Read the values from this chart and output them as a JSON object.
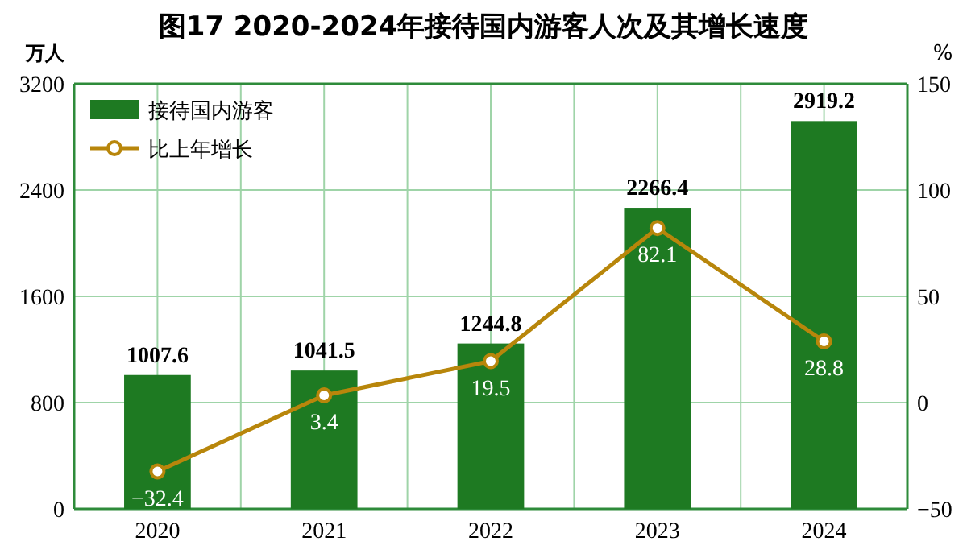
{
  "chart_data": {
    "type": "bar",
    "title": "图17 2020-2024年接待国内游客人次及其增长速度",
    "ylabel": "万人",
    "y2label": "%",
    "categories": [
      "2020",
      "2021",
      "2022",
      "2023",
      "2024"
    ],
    "series": [
      {
        "name": "接待国内游客",
        "color": "#1e7a22",
        "values": [
          1007.6,
          1041.5,
          1244.8,
          2266.4,
          2919.2
        ]
      },
      {
        "name": "比上年增长",
        "type": "line",
        "axis": "y2",
        "color": "#b8860b",
        "marker": "circle",
        "values": [
          -32.4,
          3.4,
          19.5,
          82.1,
          28.8
        ]
      }
    ],
    "ylim": [
      0,
      3200
    ],
    "yticks": [
      0,
      800,
      1600,
      2400,
      3200
    ],
    "y2lim": [
      -50,
      150
    ],
    "y2ticks": [
      -50,
      0,
      50,
      100,
      150
    ],
    "grid": true,
    "legend": "top left",
    "data_labels": true
  }
}
